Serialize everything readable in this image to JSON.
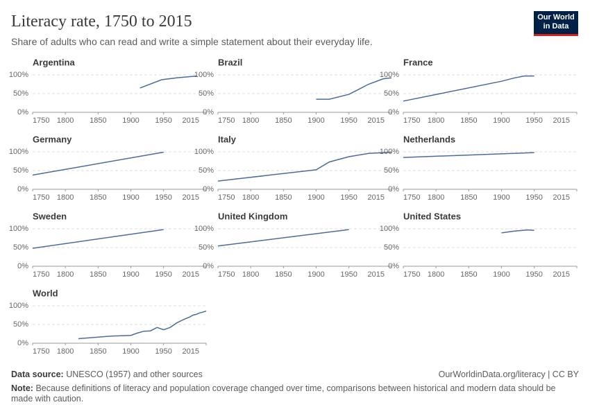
{
  "title": "Literacy rate, 1750 to 2015",
  "subtitle": "Share of adults who can read and write a simple statement about their everyday life.",
  "logo": [
    "Our World",
    "in Data"
  ],
  "source_label": "Data source:",
  "source": "UNESCO (1957) and other sources",
  "url": "OurWorldinData.org/literacy | CC BY",
  "note_label": "Note:",
  "note": "Because definitions of literacy and population coverage changed over time, comparisons between historical and modern data should be made with caution.",
  "chart_data": [
    {
      "type": "line",
      "title": "Argentina",
      "x": [
        1914,
        1947,
        1970,
        2001
      ],
      "values": [
        65,
        87,
        92,
        97
      ],
      "color": "#4c6a9c",
      "xlim": [
        1750,
        2015
      ],
      "ylim": [
        0,
        100
      ],
      "xticks": [
        1750,
        1800,
        1850,
        1900,
        1950,
        2015
      ],
      "yticks": [
        {
          "value": 0,
          "label": "0%"
        },
        {
          "value": 50,
          "label": "50%"
        },
        {
          "value": 100,
          "label": "100%"
        }
      ],
      "grid": true
    },
    {
      "type": "line",
      "title": "Brazil",
      "x": [
        1900,
        1920,
        1950,
        1980,
        2000,
        2004,
        2015
      ],
      "values": [
        35,
        35,
        48,
        75,
        88,
        90,
        92
      ],
      "color": "#4c6a9c",
      "xlim": [
        1750,
        2015
      ],
      "ylim": [
        0,
        100
      ],
      "xticks": [
        1750,
        1800,
        1850,
        1900,
        1950,
        2015
      ],
      "yticks": [
        {
          "value": 0,
          "label": "0%"
        },
        {
          "value": 50,
          "label": "50%"
        },
        {
          "value": 100,
          "label": "100%"
        }
      ],
      "grid": true
    },
    {
      "type": "line",
      "title": "France",
      "x": [
        1750,
        1900,
        1920,
        1935,
        1950
      ],
      "values": [
        30,
        83,
        92,
        97,
        97
      ],
      "color": "#4c6a9c",
      "xlim": [
        1750,
        2015
      ],
      "ylim": [
        0,
        100
      ],
      "xticks": [
        1750,
        1800,
        1850,
        1900,
        1950,
        2015
      ],
      "yticks": [
        {
          "value": 0,
          "label": "0%"
        },
        {
          "value": 50,
          "label": "50%"
        },
        {
          "value": 100,
          "label": "100%"
        }
      ],
      "grid": true
    },
    {
      "type": "line",
      "title": "Germany",
      "x": [
        1750,
        1950
      ],
      "values": [
        38,
        99
      ],
      "color": "#4c6a9c",
      "xlim": [
        1750,
        2015
      ],
      "ylim": [
        0,
        100
      ],
      "xticks": [
        1750,
        1800,
        1850,
        1900,
        1950,
        2015
      ],
      "yticks": [
        {
          "value": 0,
          "label": "0%"
        },
        {
          "value": 50,
          "label": "50%"
        },
        {
          "value": 100,
          "label": "100%"
        }
      ],
      "grid": true
    },
    {
      "type": "line",
      "title": "Italy",
      "x": [
        1750,
        1900,
        1920,
        1950,
        1980,
        2015
      ],
      "values": [
        22,
        52,
        73,
        87,
        96,
        99
      ],
      "color": "#4c6a9c",
      "xlim": [
        1750,
        2015
      ],
      "ylim": [
        0,
        100
      ],
      "xticks": [
        1750,
        1800,
        1850,
        1900,
        1950,
        2015
      ],
      "yticks": [
        {
          "value": 0,
          "label": "0%"
        },
        {
          "value": 50,
          "label": "50%"
        },
        {
          "value": 100,
          "label": "100%"
        }
      ],
      "grid": true
    },
    {
      "type": "line",
      "title": "Netherlands",
      "x": [
        1750,
        1950
      ],
      "values": [
        85,
        98
      ],
      "color": "#4c6a9c",
      "xlim": [
        1750,
        2015
      ],
      "ylim": [
        0,
        100
      ],
      "xticks": [
        1750,
        1800,
        1850,
        1900,
        1950,
        2015
      ],
      "yticks": [
        {
          "value": 0,
          "label": "0%"
        },
        {
          "value": 50,
          "label": "50%"
        },
        {
          "value": 100,
          "label": "100%"
        }
      ],
      "grid": true
    },
    {
      "type": "line",
      "title": "Sweden",
      "x": [
        1750,
        1950
      ],
      "values": [
        48,
        98
      ],
      "color": "#4c6a9c",
      "xlim": [
        1750,
        2015
      ],
      "ylim": [
        0,
        100
      ],
      "xticks": [
        1750,
        1800,
        1850,
        1900,
        1950,
        2015
      ],
      "yticks": [
        {
          "value": 0,
          "label": "0%"
        },
        {
          "value": 50,
          "label": "50%"
        },
        {
          "value": 100,
          "label": "100%"
        }
      ],
      "grid": true
    },
    {
      "type": "line",
      "title": "United Kingdom",
      "x": [
        1750,
        1950
      ],
      "values": [
        54,
        98
      ],
      "color": "#4c6a9c",
      "xlim": [
        1750,
        2015
      ],
      "ylim": [
        0,
        100
      ],
      "xticks": [
        1750,
        1800,
        1850,
        1900,
        1950,
        2015
      ],
      "yticks": [
        {
          "value": 0,
          "label": "0%"
        },
        {
          "value": 50,
          "label": "50%"
        },
        {
          "value": 100,
          "label": "100%"
        }
      ],
      "grid": true
    },
    {
      "type": "line",
      "title": "United States",
      "x": [
        1900,
        1920,
        1940,
        1950
      ],
      "values": [
        89,
        94,
        97,
        96
      ],
      "color": "#4c6a9c",
      "xlim": [
        1750,
        2015
      ],
      "ylim": [
        0,
        100
      ],
      "xticks": [
        1750,
        1800,
        1850,
        1900,
        1950,
        2015
      ],
      "yticks": [
        {
          "value": 0,
          "label": "0%"
        },
        {
          "value": 50,
          "label": "50%"
        },
        {
          "value": 100,
          "label": "100%"
        }
      ],
      "grid": true
    },
    {
      "type": "line",
      "title": "World",
      "x": [
        1820,
        1870,
        1900,
        1910,
        1920,
        1930,
        1940,
        1950,
        1960,
        1970,
        1980,
        1990,
        1995,
        2000,
        2005,
        2010,
        2015
      ],
      "values": [
        12,
        19,
        21,
        27,
        32,
        33,
        42,
        36,
        42,
        54,
        63,
        70,
        75,
        77,
        81,
        83,
        86
      ],
      "color": "#4c6a9c",
      "xlim": [
        1750,
        2015
      ],
      "ylim": [
        0,
        100
      ],
      "xticks": [
        1750,
        1800,
        1850,
        1900,
        1950,
        2015
      ],
      "yticks": [
        {
          "value": 0,
          "label": "0%"
        },
        {
          "value": 50,
          "label": "50%"
        },
        {
          "value": 100,
          "label": "100%"
        }
      ],
      "grid": true
    }
  ]
}
